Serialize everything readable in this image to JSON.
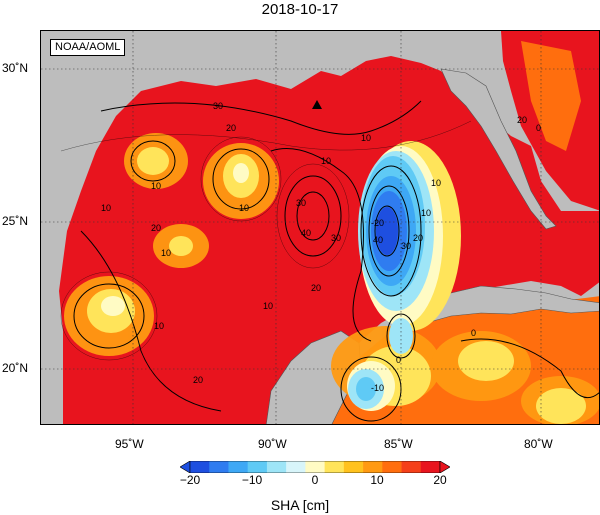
{
  "title": "2018-10-17",
  "source_label": "NOAA/AOML",
  "lat_ticks": [
    "30˚N",
    "25˚N",
    "20˚N"
  ],
  "lon_ticks": [
    "95˚W",
    "90˚W",
    "85˚W",
    "80˚W"
  ],
  "colorbar": {
    "title": "SHA [cm]",
    "ticks": [
      "−20",
      "−10",
      "0",
      "10",
      "20"
    ],
    "min": -20,
    "max": 20,
    "colors": [
      "#1e4fe0",
      "#2f7cf0",
      "#3ea8f5",
      "#5fcaf5",
      "#9ee5f7",
      "#d8f5fa",
      "#fffbc4",
      "#ffe45a",
      "#ffc21e",
      "#ff9a12",
      "#ff6e0e",
      "#f5401a",
      "#e8141e"
    ]
  },
  "contour_labels": [
    "20",
    "30",
    "10",
    "10",
    "10",
    "10",
    "20",
    "30",
    "40",
    "10",
    "20",
    "30",
    "40",
    "10",
    "20",
    "30",
    "-20",
    "10",
    "10",
    "-10",
    "0",
    "20",
    "10",
    "10",
    "0",
    "0",
    "20"
  ],
  "colors": {
    "land": "#bdbdbd",
    "deep_red": "#e8141e",
    "red": "#f5401a",
    "orange": "#ff9a12",
    "yellow": "#ffe45a",
    "pale": "#fffbc4",
    "cyan": "#5fcaf5",
    "blue": "#1e4fe0"
  }
}
